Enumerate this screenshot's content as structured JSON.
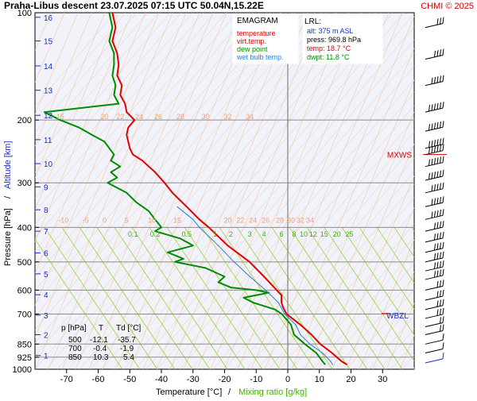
{
  "header": {
    "title": "Praha-Libus   descent   23.07.2025 07:15 UTC  50.04N,15.22E",
    "credit": "CHMI © 2025"
  },
  "chart_data": {
    "type": "line",
    "title": "EMAGRAM",
    "xlabel_main": "Temperature [°C]",
    "xlabel_sep": "/",
    "xlabel_alt": "Mixing ratio [g/kg]",
    "ylabel_main": "Pressure [hPa]",
    "ylabel_sep": "/",
    "ylabel_alt": "Altitude [km]",
    "xlim": [
      -80,
      40
    ],
    "ylim": [
      1000,
      100
    ],
    "x_ticks": [
      -70,
      -60,
      -50,
      -40,
      -30,
      -20,
      -10,
      0,
      10,
      20,
      30
    ],
    "p_ticks": [
      100,
      200,
      300,
      400,
      500,
      600,
      700,
      850,
      925,
      1000
    ],
    "km_ticks": [
      {
        "label": "1",
        "p": 915
      },
      {
        "label": "2",
        "p": 800
      },
      {
        "label": "3",
        "p": 705
      },
      {
        "label": "4",
        "p": 618
      },
      {
        "label": "5",
        "p": 540
      },
      {
        "label": "6",
        "p": 472
      },
      {
        "label": "7",
        "p": 410
      },
      {
        "label": "8",
        "p": 357
      },
      {
        "label": "9",
        "p": 308
      },
      {
        "label": "10",
        "p": 265
      },
      {
        "label": "11",
        "p": 227
      },
      {
        "label": "12",
        "p": 194
      },
      {
        "label": "13",
        "p": 165
      },
      {
        "label": "14",
        "p": 141
      },
      {
        "label": "15",
        "p": 120
      },
      {
        "label": "16",
        "p": 103
      }
    ],
    "legend": [
      {
        "name": "temperature",
        "color": "#e00000"
      },
      {
        "name": "virt.temp.",
        "color": "#e00000"
      },
      {
        "name": "dew point",
        "color": "#008c00"
      },
      {
        "name": "wet bulb temp.",
        "color": "#2a7de0"
      }
    ],
    "lrl": {
      "title": "LRL:",
      "alt": "alt: 375 m ASL",
      "press": "press: 969.8 hPa",
      "temp": "temp: 18.7 °C",
      "dwpt": "dwpt: 11.8 °C"
    },
    "level_markers": [
      {
        "label": "MXWS",
        "p": 250
      },
      {
        "label": "WBZL",
        "p": 705
      }
    ],
    "iso_labels_upper": {
      "p": 196,
      "items": [
        {
          "t": "15",
          "x": -72
        },
        {
          "t": "20",
          "x": -58
        },
        {
          "t": "22",
          "x": -53
        },
        {
          "t": "24",
          "x": -47
        },
        {
          "t": "26",
          "x": -41
        },
        {
          "t": "28",
          "x": -34
        },
        {
          "t": "30",
          "x": -26
        },
        {
          "t": "32",
          "x": -19
        },
        {
          "t": "34",
          "x": -12
        }
      ]
    },
    "iso_labels_lower": {
      "p": 382,
      "items": [
        {
          "t": "-10",
          "x": -71
        },
        {
          "t": "-5",
          "x": -64
        },
        {
          "t": "0",
          "x": -58
        },
        {
          "t": "5",
          "x": -51
        },
        {
          "t": "10",
          "x": -43
        },
        {
          "t": "15",
          "x": -35
        },
        {
          "t": "20",
          "x": -19
        },
        {
          "t": "22",
          "x": -15
        },
        {
          "t": "24",
          "x": -11
        },
        {
          "t": "26",
          "x": -7
        },
        {
          "t": "28",
          "x": -2.5
        },
        {
          "t": "30",
          "x": 1
        },
        {
          "t": "32",
          "x": 4
        },
        {
          "t": "34",
          "x": 7
        }
      ]
    },
    "mixing_labels": {
      "p": 418,
      "items": [
        {
          "t": "0.1",
          "x": -49
        },
        {
          "t": "0.2",
          "x": -42
        },
        {
          "t": "0.5",
          "x": -32
        },
        {
          "t": "1",
          "x": -23
        },
        {
          "t": "2",
          "x": -18
        },
        {
          "t": "3",
          "x": -12
        },
        {
          "t": "4",
          "x": -7.5
        },
        {
          "t": "6",
          "x": -2
        },
        {
          "t": "8",
          "x": 2
        },
        {
          "t": "10",
          "x": 5
        },
        {
          "t": "12",
          "x": 8
        },
        {
          "t": "15",
          "x": 11.5
        },
        {
          "t": "20",
          "x": 15.5
        },
        {
          "t": "25",
          "x": 19.5
        }
      ]
    },
    "table": {
      "headers": [
        "p [hPa]",
        "T",
        "Td [°C]"
      ],
      "rows": [
        [
          "500",
          "-12.1",
          "-35.7"
        ],
        [
          "700",
          "-0.4",
          "-1.9"
        ],
        [
          "850",
          "10.3",
          "5.4"
        ]
      ]
    },
    "series": [
      {
        "name": "temperature",
        "color": "#e00000",
        "points": [
          [
            100,
            -55.5
          ],
          [
            110,
            -54.5
          ],
          [
            120,
            -55.5
          ],
          [
            130,
            -54
          ],
          [
            140,
            -53.5
          ],
          [
            150,
            -54
          ],
          [
            160,
            -52.5
          ],
          [
            170,
            -53
          ],
          [
            180,
            -51.5
          ],
          [
            190,
            -51
          ],
          [
            200,
            -48.5
          ],
          [
            210,
            -50.5
          ],
          [
            220,
            -51
          ],
          [
            230,
            -50.5
          ],
          [
            240,
            -50
          ],
          [
            250,
            -49
          ],
          [
            260,
            -46
          ],
          [
            270,
            -44
          ],
          [
            280,
            -42
          ],
          [
            300,
            -39
          ],
          [
            320,
            -36.5
          ],
          [
            350,
            -32
          ],
          [
            380,
            -28
          ],
          [
            400,
            -25
          ],
          [
            450,
            -19
          ],
          [
            500,
            -12.1
          ],
          [
            550,
            -7.5
          ],
          [
            600,
            -3.5
          ],
          [
            620,
            -2
          ],
          [
            650,
            -2
          ],
          [
            670,
            -1.5
          ],
          [
            700,
            -0.4
          ],
          [
            750,
            4
          ],
          [
            800,
            7.5
          ],
          [
            850,
            10.3
          ],
          [
            900,
            14
          ],
          [
            950,
            17
          ],
          [
            969.8,
            18.7
          ]
        ]
      },
      {
        "name": "dew point",
        "color": "#008c00",
        "points": [
          [
            100,
            -56.5
          ],
          [
            110,
            -55.5
          ],
          [
            120,
            -56.5
          ],
          [
            130,
            -55
          ],
          [
            140,
            -55
          ],
          [
            150,
            -55.5
          ],
          [
            160,
            -54.5
          ],
          [
            170,
            -55
          ],
          [
            180,
            -53.5
          ],
          [
            190,
            -77
          ],
          [
            200,
            -72
          ],
          [
            210,
            -66
          ],
          [
            220,
            -62
          ],
          [
            230,
            -58
          ],
          [
            250,
            -55
          ],
          [
            260,
            -56
          ],
          [
            270,
            -53
          ],
          [
            280,
            -56
          ],
          [
            290,
            -54
          ],
          [
            300,
            -57
          ],
          [
            320,
            -51
          ],
          [
            340,
            -48
          ],
          [
            360,
            -44
          ],
          [
            380,
            -42
          ],
          [
            400,
            -40
          ],
          [
            410,
            -42
          ],
          [
            430,
            -34
          ],
          [
            450,
            -30
          ],
          [
            470,
            -38
          ],
          [
            490,
            -33
          ],
          [
            500,
            -35.7
          ],
          [
            520,
            -26
          ],
          [
            550,
            -20
          ],
          [
            570,
            -22
          ],
          [
            590,
            -18
          ],
          [
            600,
            -10
          ],
          [
            610,
            -6
          ],
          [
            630,
            -14
          ],
          [
            650,
            -11
          ],
          [
            680,
            -4
          ],
          [
            700,
            -1.9
          ],
          [
            750,
            1
          ],
          [
            800,
            2
          ],
          [
            850,
            5.4
          ],
          [
            900,
            9
          ],
          [
            950,
            11
          ],
          [
            969.8,
            11.8
          ]
        ]
      },
      {
        "name": "wet bulb temp.",
        "color": "#2a7de0",
        "points": [
          [
            350,
            -35
          ],
          [
            380,
            -30
          ],
          [
            400,
            -28
          ],
          [
            450,
            -22
          ],
          [
            500,
            -17
          ],
          [
            550,
            -12
          ],
          [
            600,
            -7
          ],
          [
            650,
            -3
          ],
          [
            700,
            -1
          ],
          [
            750,
            2.5
          ],
          [
            800,
            4
          ],
          [
            850,
            7
          ],
          [
            900,
            11
          ],
          [
            950,
            13.5
          ],
          [
            969.8,
            14.2
          ]
        ]
      }
    ],
    "wind_barbs": [
      {
        "p": 110,
        "dir": 290,
        "spd": 25
      },
      {
        "p": 135,
        "dir": 290,
        "spd": 35
      },
      {
        "p": 160,
        "dir": 280,
        "spd": 45
      },
      {
        "p": 190,
        "dir": 280,
        "spd": 55
      },
      {
        "p": 215,
        "dir": 270,
        "spd": 60
      },
      {
        "p": 240,
        "dir": 270,
        "spd": 65
      },
      {
        "p": 250,
        "dir": 270,
        "spd": 70
      },
      {
        "p": 270,
        "dir": 270,
        "spd": 60
      },
      {
        "p": 295,
        "dir": 270,
        "spd": 55
      },
      {
        "p": 320,
        "dir": 270,
        "spd": 50
      },
      {
        "p": 350,
        "dir": 270,
        "spd": 45
      },
      {
        "p": 380,
        "dir": 270,
        "spd": 45
      },
      {
        "p": 410,
        "dir": 270,
        "spd": 40
      },
      {
        "p": 440,
        "dir": 270,
        "spd": 40
      },
      {
        "p": 470,
        "dir": 270,
        "spd": 40
      },
      {
        "p": 500,
        "dir": 270,
        "spd": 40
      },
      {
        "p": 530,
        "dir": 270,
        "spd": 35
      },
      {
        "p": 560,
        "dir": 270,
        "spd": 35
      },
      {
        "p": 600,
        "dir": 270,
        "spd": 30
      },
      {
        "p": 640,
        "dir": 270,
        "spd": 30
      },
      {
        "p": 680,
        "dir": 270,
        "spd": 25
      },
      {
        "p": 720,
        "dir": 270,
        "spd": 25
      },
      {
        "p": 760,
        "dir": 270,
        "spd": 20
      },
      {
        "p": 800,
        "dir": 270,
        "spd": 15
      },
      {
        "p": 850,
        "dir": 250,
        "spd": 10
      },
      {
        "p": 900,
        "dir": 240,
        "spd": 10
      },
      {
        "p": 960,
        "dir": 230,
        "spd": 10
      }
    ]
  }
}
